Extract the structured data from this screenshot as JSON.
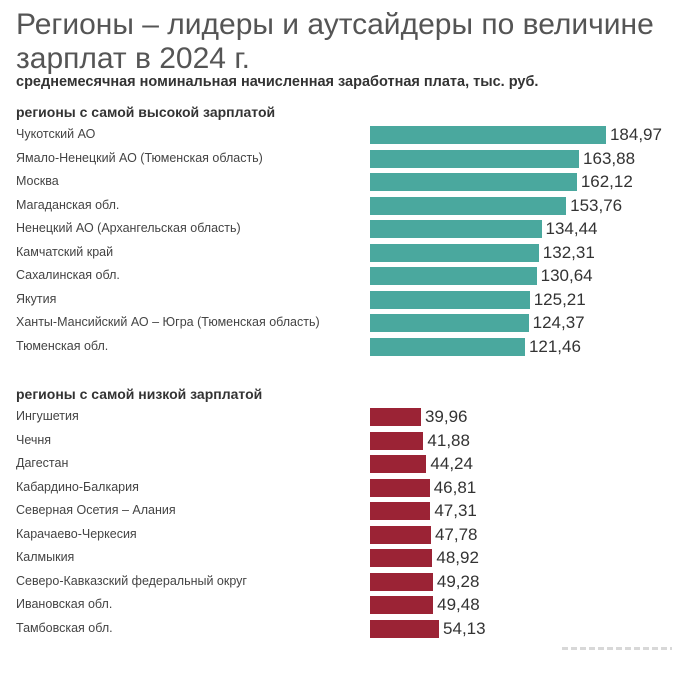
{
  "title": "Регионы – лидеры и аутсайдеры по величине зарплат в 2024 г.",
  "subtitle": "среднемесячная номинальная начисленная заработная плата, тыс. руб.",
  "colors": {
    "high": "#4aa89e",
    "low": "#9b2335"
  },
  "chart_data": [
    {
      "type": "bar",
      "orientation": "horizontal",
      "title": "регионы с самой высокой зарплатой",
      "xlim": [
        0,
        185
      ],
      "categories": [
        "Чукотский АО",
        "Ямало-Ненецкий АО (Тюменская область)",
        "Москва",
        "Магаданская обл.",
        "Ненецкий АО (Архангельская область)",
        "Камчатский край",
        "Сахалинская обл.",
        "Якутия",
        "Ханты-Мансийский АО – Югра (Тюменская область)",
        "Тюменская обл."
      ],
      "values": [
        184.97,
        163.88,
        162.12,
        153.76,
        134.44,
        132.31,
        130.64,
        125.21,
        124.37,
        121.46
      ],
      "value_labels": [
        "184,97",
        "163,88",
        "162,12",
        "153,76",
        "134,44",
        "132,31",
        "130,64",
        "125,21",
        "124,37",
        "121,46"
      ]
    },
    {
      "type": "bar",
      "orientation": "horizontal",
      "title": "регионы с самой низкой зарплатой",
      "xlim": [
        0,
        185
      ],
      "categories": [
        "Ингушетия",
        "Чечня",
        "Дагестан",
        "Кабардино-Балкария",
        "Северная Осетия – Алания",
        "Карачаево-Черкесия",
        "Калмыкия",
        "Северо-Кавказский федеральный округ",
        "Ивановская обл.",
        "Тамбовская обл."
      ],
      "values": [
        39.96,
        41.88,
        44.24,
        46.81,
        47.31,
        47.78,
        48.92,
        49.28,
        49.48,
        54.13
      ],
      "value_labels": [
        "39,96",
        "41,88",
        "44,24",
        "46,81",
        "47,31",
        "47,78",
        "48,92",
        "49,28",
        "49,48",
        "54,13"
      ]
    }
  ]
}
